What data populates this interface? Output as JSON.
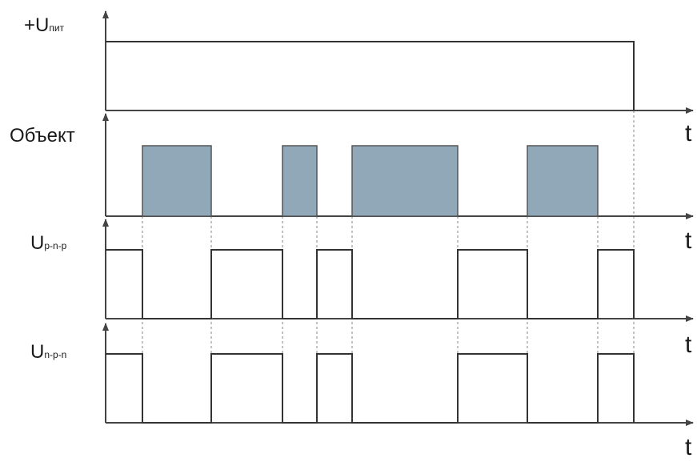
{
  "labels": {
    "supply": {
      "prefix": "+U",
      "sub": "пит"
    },
    "object": {
      "text": "Объект"
    },
    "pnp": {
      "prefix": "U",
      "sub": "p-n-p"
    },
    "npn": {
      "prefix": "U",
      "sub": "n-p-n"
    }
  },
  "axis_label": "t",
  "colors": {
    "axis": "#444444",
    "signal": "#333333",
    "object_fill": "#91a8b8",
    "object_stroke": "#555555",
    "guide": "#9a9a9a"
  }
}
